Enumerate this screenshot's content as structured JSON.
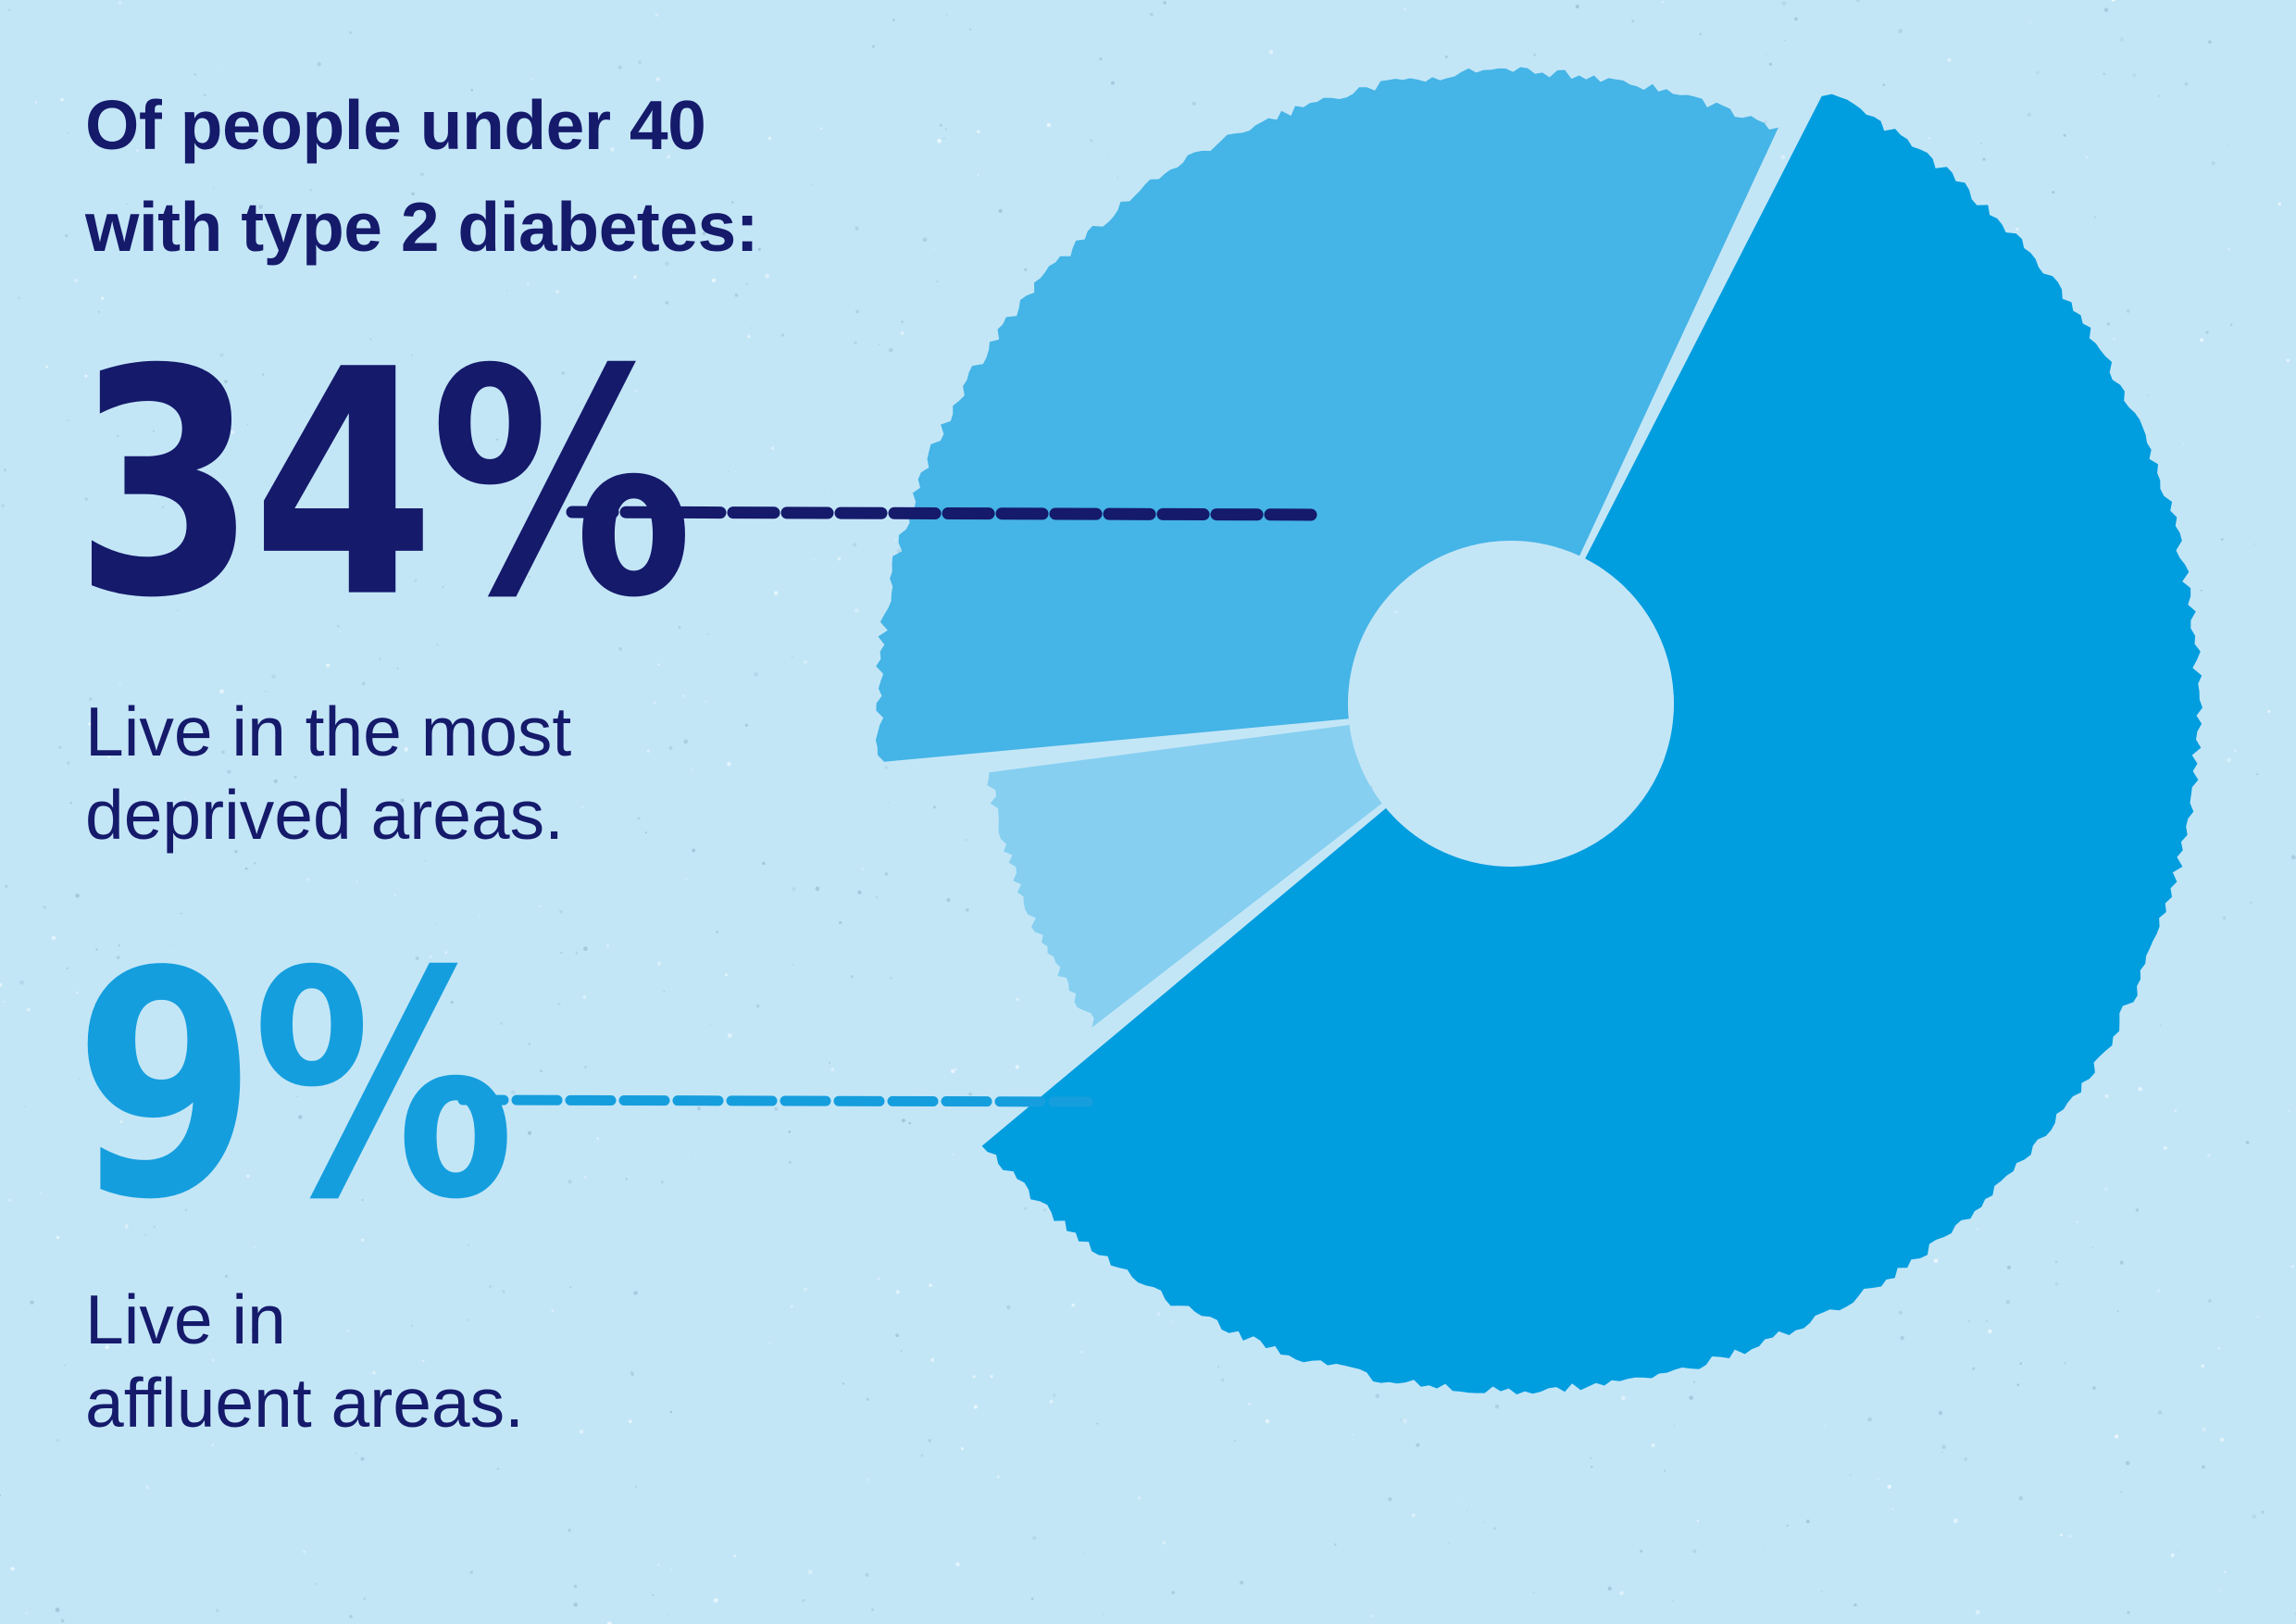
{
  "heading": {
    "line1": "Of people under 40",
    "line2": "with type 2 diabetes:"
  },
  "chart_data": {
    "type": "pie",
    "donut": true,
    "categories": [
      "Live in the most deprived areas.",
      "Live in affluent areas.",
      ""
    ],
    "values": [
      34,
      9,
      57
    ],
    "labels": [
      {
        "value_text": "34%",
        "description_lines": [
          "Live in the most",
          "deprived areas."
        ]
      },
      {
        "value_text": "9%",
        "description_lines": [
          "Live in",
          "affluent areas."
        ]
      }
    ],
    "colors": [
      "#45b4e6",
      "#86cff0",
      "#009ddf"
    ],
    "legend": "none",
    "title": "Of people under 40 with type 2 diabetes:"
  },
  "colors": {
    "background": "#c3e6f7",
    "navy": "#151a6b",
    "bright_blue": "#159ede",
    "texture_speck": "#8fb7cc"
  }
}
